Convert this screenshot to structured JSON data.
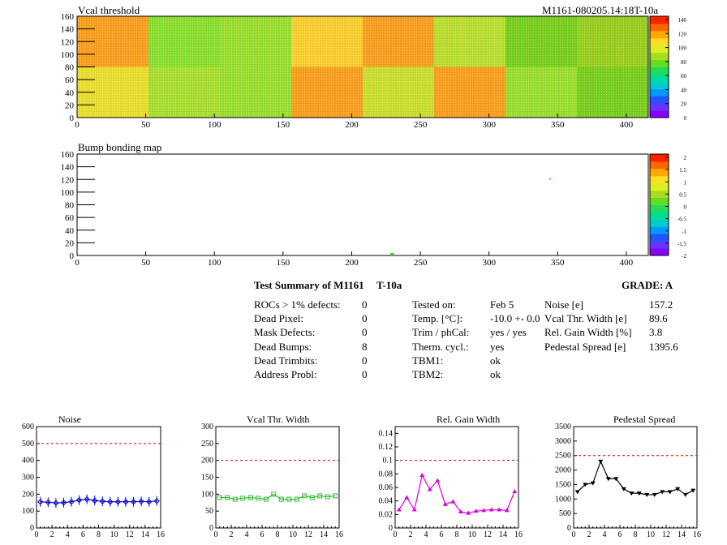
{
  "header": {
    "module_id": "M1161-080205.14:18T-10a"
  },
  "maps": [
    {
      "title": "Vcal threshold",
      "xticks": [
        0,
        50,
        100,
        150,
        200,
        250,
        300,
        350,
        400
      ],
      "yticks": [
        0,
        20,
        40,
        60,
        80,
        100,
        120,
        140,
        160
      ],
      "palette_labels": [
        "140",
        "120",
        "100",
        "80",
        "60",
        "40",
        "20",
        "0"
      ]
    },
    {
      "title": "Bump bonding map",
      "xticks": [
        0,
        50,
        100,
        150,
        200,
        250,
        300,
        350,
        400
      ],
      "yticks": [
        0,
        20,
        40,
        60,
        80,
        100,
        120,
        140,
        160
      ],
      "palette_labels": [
        "2",
        "1.5",
        "1",
        "0.5",
        "0",
        "-0.5",
        "-1",
        "-1.5",
        "-2"
      ]
    }
  ],
  "summary": {
    "title": "Test Summary of M1161",
    "subtitle": "T-10a",
    "grade": "GRADE:  A",
    "left_rows": [
      {
        "label": "ROCs > 1% defects:",
        "value": "0"
      },
      {
        "label": "Dead Pixel:",
        "value": "0"
      },
      {
        "label": "Mask Defects:",
        "value": "0"
      },
      {
        "label": "Dead Bumps:",
        "value": "8"
      },
      {
        "label": "Dead Trimbits:",
        "value": "0"
      },
      {
        "label": "Address Probl:",
        "value": "0"
      }
    ],
    "mid_rows": [
      {
        "label": "Tested on:",
        "value": "Feb 5"
      },
      {
        "label": "Temp. [°C]:",
        "value": "-10.0 +- 0.0"
      },
      {
        "label": "Trim / phCal:",
        "value": "yes / yes"
      },
      {
        "label": "Therm. cycl.:",
        "value": "yes"
      },
      {
        "label": "TBM1:",
        "value": "ok"
      },
      {
        "label": "TBM2:",
        "value": "ok"
      }
    ],
    "right_rows": [
      {
        "label": "Noise [e]",
        "value": "157.2"
      },
      {
        "label": "Vcal Thr. Width [e]",
        "value": "89.6"
      },
      {
        "label": "Rel. Gain Width [%]",
        "value": "3.8"
      },
      {
        "label": "Pedestal Spread [e]",
        "value": "1395.6"
      }
    ]
  },
  "chart_data": [
    {
      "type": "line",
      "title": "Noise",
      "color": "#0000cc",
      "marker": "diamond",
      "xlim": [
        0,
        16
      ],
      "ylim": [
        0,
        600
      ],
      "xticks": [
        0,
        2,
        4,
        6,
        8,
        10,
        12,
        14,
        16
      ],
      "yticks": [
        0,
        100,
        200,
        300,
        400,
        500,
        600
      ],
      "threshold": 500,
      "x": [
        0.5,
        1.5,
        2.5,
        3.5,
        4.5,
        5.5,
        6.5,
        7.5,
        8.5,
        9.5,
        10.5,
        11.5,
        12.5,
        13.5,
        14.5,
        15.5
      ],
      "y": [
        155,
        152,
        148,
        150,
        155,
        165,
        170,
        162,
        158,
        155,
        155,
        155,
        155,
        157,
        155,
        160
      ]
    },
    {
      "type": "line",
      "title": "Vcal Thr. Width",
      "color": "#33bb33",
      "marker": "square",
      "xlim": [
        0,
        16
      ],
      "ylim": [
        0,
        300
      ],
      "xticks": [
        0,
        2,
        4,
        6,
        8,
        10,
        12,
        14,
        16
      ],
      "yticks": [
        0,
        50,
        100,
        150,
        200,
        250,
        300
      ],
      "threshold": 200,
      "x": [
        0.5,
        1.5,
        2.5,
        3.5,
        4.5,
        5.5,
        6.5,
        7.5,
        8.5,
        9.5,
        10.5,
        11.5,
        12.5,
        13.5,
        14.5,
        15.5
      ],
      "y": [
        90,
        90,
        85,
        88,
        90,
        88,
        85,
        100,
        85,
        85,
        85,
        95,
        90,
        95,
        92,
        95
      ]
    },
    {
      "type": "line",
      "title": "Rel. Gain Width",
      "color": "#dd00dd",
      "marker": "triangle",
      "xlim": [
        0,
        16
      ],
      "ylim": [
        0,
        0.15
      ],
      "xticks": [
        0,
        2,
        4,
        6,
        8,
        10,
        12,
        14,
        16
      ],
      "yticks": [
        0,
        0.02,
        0.04,
        0.06,
        0.08,
        0.1,
        0.12,
        0.14
      ],
      "threshold": 0.1,
      "x": [
        0.5,
        1.5,
        2.5,
        3.5,
        4.5,
        5.5,
        6.5,
        7.5,
        8.5,
        9.5,
        10.5,
        11.5,
        12.5,
        13.5,
        14.5,
        15.5
      ],
      "y": [
        0.027,
        0.045,
        0.027,
        0.078,
        0.057,
        0.07,
        0.035,
        0.039,
        0.024,
        0.022,
        0.025,
        0.026,
        0.027,
        0.027,
        0.026,
        0.054
      ]
    },
    {
      "type": "line",
      "title": "Pedestal Spread",
      "color": "#000000",
      "marker": "triangle-down",
      "xlim": [
        0,
        16
      ],
      "ylim": [
        0,
        3500
      ],
      "xticks": [
        0,
        2,
        4,
        6,
        8,
        10,
        12,
        14,
        16
      ],
      "yticks": [
        0,
        500,
        1000,
        1500,
        2000,
        2500,
        3000,
        3500
      ],
      "threshold": 2500,
      "x": [
        0.5,
        1.5,
        2.5,
        3.5,
        4.5,
        5.5,
        6.5,
        7.5,
        8.5,
        9.5,
        10.5,
        11.5,
        12.5,
        13.5,
        14.5,
        15.5
      ],
      "y": [
        1250,
        1500,
        1550,
        2300,
        1700,
        1700,
        1350,
        1200,
        1200,
        1150,
        1150,
        1250,
        1250,
        1350,
        1150,
        1300
      ]
    }
  ]
}
